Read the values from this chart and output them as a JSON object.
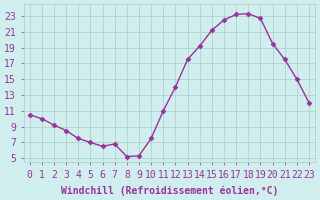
{
  "x": [
    0,
    1,
    2,
    3,
    4,
    5,
    6,
    7,
    8,
    9,
    10,
    11,
    12,
    13,
    14,
    15,
    16,
    17,
    18,
    19,
    20,
    21,
    22,
    23
  ],
  "y": [
    10.5,
    10.0,
    9.2,
    8.5,
    7.5,
    7.0,
    6.5,
    6.8,
    5.2,
    5.3,
    7.5,
    11.0,
    14.0,
    17.5,
    19.2,
    21.2,
    22.5,
    23.2,
    23.3,
    22.7,
    19.5,
    17.5,
    15.0,
    12.0
  ],
  "line_color": "#993399",
  "marker_color": "#993399",
  "bg_color": "#d0eeee",
  "grid_color": "#aacccc",
  "xlabel": "Windchill (Refroidissement éolien,°C)",
  "ylabel_ticks": [
    5,
    7,
    9,
    11,
    13,
    15,
    17,
    19,
    21,
    23
  ],
  "xlim": [
    -0.5,
    23.5
  ],
  "ylim": [
    4.5,
    24.5
  ],
  "xticks": [
    0,
    1,
    2,
    3,
    4,
    5,
    6,
    7,
    8,
    9,
    10,
    11,
    12,
    13,
    14,
    15,
    16,
    17,
    18,
    19,
    20,
    21,
    22,
    23
  ],
  "xlabel_fontsize": 7,
  "tick_fontsize": 7
}
